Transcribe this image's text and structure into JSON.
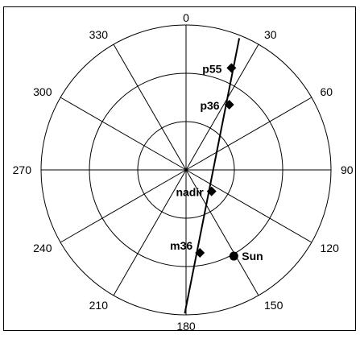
{
  "diagram": {
    "type": "polar-plot",
    "angle_labels": [
      {
        "deg": 0,
        "text": "0"
      },
      {
        "deg": 30,
        "text": "30"
      },
      {
        "deg": 60,
        "text": "60"
      },
      {
        "deg": 90,
        "text": "90"
      },
      {
        "deg": 120,
        "text": "120"
      },
      {
        "deg": 150,
        "text": "150"
      },
      {
        "deg": 180,
        "text": "180"
      },
      {
        "deg": 210,
        "text": "210"
      },
      {
        "deg": 240,
        "text": "240"
      },
      {
        "deg": 270,
        "text": "270"
      },
      {
        "deg": 300,
        "text": "300"
      },
      {
        "deg": 330,
        "text": "330"
      }
    ],
    "ring_count": 3,
    "points": [
      {
        "label": "p55",
        "azimuth_deg": 24.0,
        "radius_fraction": 0.77,
        "marker": "diamond"
      },
      {
        "label": "p36",
        "azimuth_deg": 33.5,
        "radius_fraction": 0.54,
        "marker": "diamond"
      },
      {
        "label": "nadir",
        "azimuth_deg": 130.0,
        "radius_fraction": 0.23,
        "marker": "diamond"
      },
      {
        "label": "m36",
        "azimuth_deg": 170.5,
        "radius_fraction": 0.58,
        "marker": "diamond"
      },
      {
        "label": "Sun",
        "azimuth_deg": 151.0,
        "radius_fraction": 0.68,
        "marker": "circle"
      }
    ],
    "track_line": {
      "start_azimuth_deg": 22.0,
      "start_radius_fraction": 0.98,
      "end_azimuth_deg": 180.5,
      "end_radius_fraction": 0.99
    },
    "colors": {
      "line": "#000000",
      "marker": "#000000",
      "background": "#ffffff"
    }
  }
}
